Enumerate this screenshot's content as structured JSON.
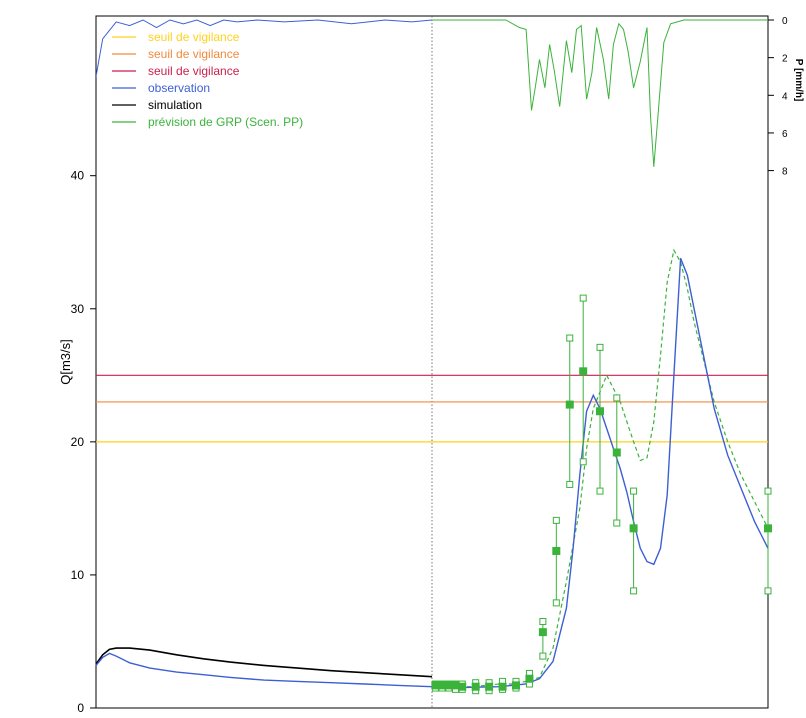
{
  "chart_data": {
    "type": "line",
    "ylabel": "Q[m3/s]",
    "ylabel_right": "P [mm/h]",
    "ylim": [
      0,
      52
    ],
    "xlim": [
      0,
      100
    ],
    "y_ticks": [
      0,
      10,
      20,
      30,
      40
    ],
    "y_tick_labels": [
      "0",
      "10",
      "20",
      "30",
      "40"
    ],
    "right_ticks": [
      0,
      2,
      4,
      6,
      8
    ],
    "right_tick_labels": [
      "0",
      "2",
      "4",
      "6",
      "8"
    ],
    "precip_range": [
      0,
      8.5
    ],
    "forecast_start_x": 50,
    "colors": {
      "yellow": "#ffd21f",
      "orange": "#f08a3e",
      "crimson": "#cc1f4e",
      "blue": "#3d5fd6",
      "black": "#000000",
      "green": "#3bb33b"
    },
    "thresholds": [
      {
        "label": "seuil de vigilance",
        "value": 20,
        "color": "#ffd21f"
      },
      {
        "label": "seuil de vigilance",
        "value": 23,
        "color": "#f08a3e"
      },
      {
        "label": "seuil de vigilance",
        "value": 25,
        "color": "#cc1f4e"
      }
    ],
    "legend": [
      {
        "label": "seuil de vigilance",
        "color": "#ffd21f"
      },
      {
        "label": "seuil de vigilance",
        "color": "#f08a3e"
      },
      {
        "label": "seuil de vigilance",
        "color": "#cc1f4e"
      },
      {
        "label": "observation",
        "color": "#3d5fd6"
      },
      {
        "label": "simulation",
        "color": "#000000"
      },
      {
        "label": "prévision de GRP (Scen. PP)",
        "color": "#3bb33b"
      }
    ],
    "observation": {
      "x": [
        0,
        1,
        2,
        3,
        5,
        8,
        12,
        16,
        20,
        25,
        30,
        35,
        40,
        45,
        50,
        55,
        60,
        64,
        66,
        68,
        70,
        71,
        72,
        73,
        74,
        75,
        76,
        77,
        78,
        79,
        80,
        81,
        82,
        83,
        84,
        85,
        86,
        87,
        88,
        89,
        90,
        91,
        92,
        94,
        96,
        98,
        100
      ],
      "y": [
        3.2,
        3.8,
        4.1,
        3.9,
        3.4,
        3.0,
        2.7,
        2.5,
        2.3,
        2.1,
        2.0,
        1.9,
        1.8,
        1.7,
        1.6,
        1.55,
        1.6,
        1.8,
        2.2,
        3.5,
        7.5,
        12.0,
        17.5,
        22.3,
        23.5,
        22.5,
        21.0,
        19.5,
        18.0,
        16.2,
        14.0,
        12.0,
        11.0,
        10.8,
        12.0,
        16.0,
        25.0,
        33.8,
        32.5,
        30.0,
        27.5,
        25.0,
        22.5,
        19.0,
        16.5,
        14.0,
        12.0
      ]
    },
    "simulation": {
      "x": [
        0,
        1,
        2,
        3,
        4,
        5,
        8,
        12,
        16,
        20,
        25,
        30,
        35,
        40,
        45,
        50
      ],
      "y": [
        3.3,
        4.0,
        4.4,
        4.5,
        4.5,
        4.5,
        4.35,
        4.0,
        3.7,
        3.45,
        3.2,
        3.0,
        2.8,
        2.65,
        2.5,
        2.35
      ]
    },
    "forecast_median": {
      "x": [
        50,
        52,
        54,
        56,
        58,
        60,
        62,
        64,
        66,
        68,
        70,
        72,
        73,
        74,
        76,
        78,
        80,
        81,
        82,
        83,
        84,
        85,
        86,
        87,
        88,
        89,
        90,
        91,
        92,
        94,
        96,
        98,
        100
      ],
      "y": [
        1.7,
        1.6,
        1.6,
        1.6,
        1.7,
        1.8,
        1.8,
        2.0,
        2.3,
        4.5,
        9.5,
        15.0,
        19.5,
        22.5,
        25.0,
        23.0,
        20.0,
        18.6,
        18.8,
        21.5,
        26.5,
        32.0,
        34.4,
        33.5,
        31.5,
        29.0,
        27.0,
        25.0,
        23.0,
        20.0,
        17.5,
        15.5,
        13.5
      ]
    },
    "forecast_points": {
      "x": [
        50.5,
        51.5,
        52.5,
        53.5,
        54.5,
        56.5,
        58.5,
        60.5,
        62.5,
        64.5,
        66.5,
        68.5,
        70.5,
        72.5,
        75,
        77.5,
        80,
        100
      ],
      "median": [
        1.7,
        1.7,
        1.7,
        1.7,
        1.6,
        1.6,
        1.6,
        1.6,
        1.7,
        2.2,
        5.7,
        11.8,
        22.8,
        25.3,
        22.3,
        19.2,
        13.5,
        13.5
      ],
      "low": [
        1.5,
        1.5,
        1.5,
        1.4,
        1.4,
        1.3,
        1.3,
        1.4,
        1.5,
        1.8,
        3.9,
        7.9,
        16.8,
        18.5,
        16.3,
        13.9,
        8.8,
        8.8
      ],
      "high": [
        1.8,
        1.8,
        1.8,
        1.8,
        1.8,
        1.9,
        1.9,
        2.0,
        2.0,
        2.6,
        6.5,
        14.1,
        27.8,
        30.8,
        27.1,
        23.3,
        16.3,
        16.3
      ]
    },
    "precipitation": {
      "x": [
        0,
        1,
        3,
        5,
        7,
        9,
        11,
        13,
        15,
        17,
        19,
        21,
        24,
        28,
        33,
        38,
        43,
        47,
        50,
        55,
        58,
        61,
        63,
        64,
        64.8,
        65.4,
        66,
        66.8,
        67.5,
        68.2,
        69,
        70,
        70.8,
        71.5,
        72.2,
        73,
        73.8,
        74.5,
        75.5,
        76.3,
        77,
        77.8,
        78.5,
        79.2,
        80,
        81,
        82,
        82.5,
        83,
        83.6,
        84.5,
        85.5,
        86.5,
        87.5,
        89,
        91,
        93,
        95,
        97,
        100
      ],
      "y": [
        3,
        1,
        0.1,
        0.3,
        0,
        0.4,
        0,
        0.2,
        0,
        0.3,
        0,
        0.1,
        0,
        0.1,
        0,
        0.2,
        0,
        0.1,
        0,
        0,
        0,
        0,
        0.4,
        0.5,
        4.8,
        3.5,
        2.1,
        3.6,
        1.3,
        2.7,
        4.6,
        1.1,
        2.8,
        0.5,
        0.3,
        4.2,
        2.8,
        0.4,
        2.1,
        4.2,
        1.3,
        0.2,
        0.5,
        1.7,
        3.6,
        2.2,
        0.4,
        5.0,
        7.8,
        5.2,
        1.2,
        0.2,
        0.1,
        0,
        0,
        0,
        0,
        0,
        0,
        0
      ]
    }
  }
}
